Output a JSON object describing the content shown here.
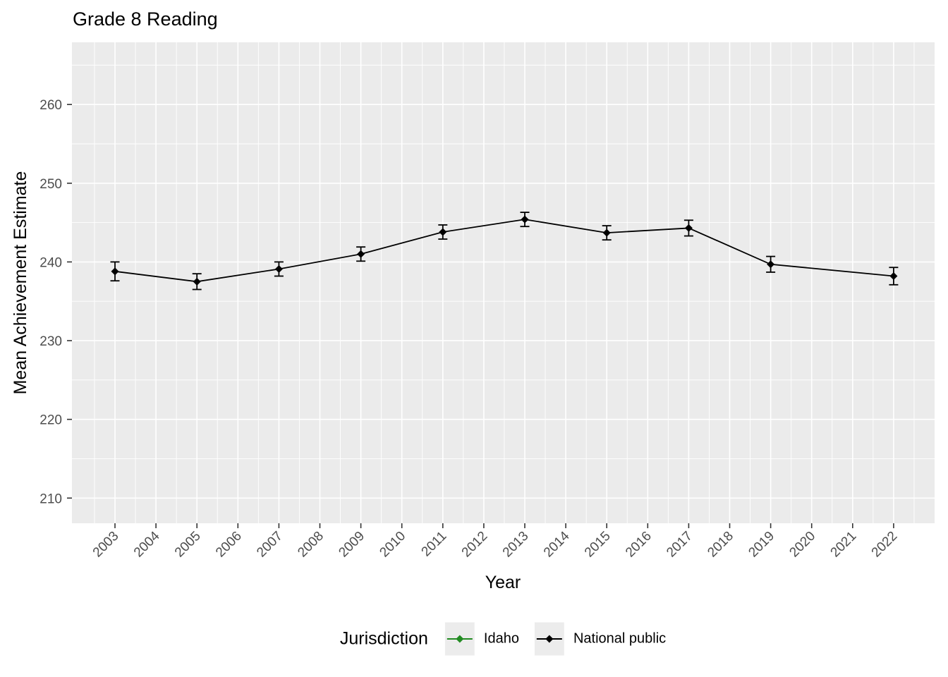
{
  "title": "Grade 8 Reading",
  "axes": {
    "x_label": "Year",
    "y_label": "Mean Achievement Estimate"
  },
  "legend": {
    "title": "Jurisdiction",
    "entries": [
      {
        "label": "Idaho",
        "color": "#228B22"
      },
      {
        "label": "National public",
        "color": "#000000"
      }
    ]
  },
  "chart_data": {
    "type": "line",
    "title": "Grade 8 Reading",
    "xlabel": "Year",
    "ylabel": "Mean Achievement Estimate",
    "x_ticks": [
      2003,
      2004,
      2005,
      2006,
      2007,
      2008,
      2009,
      2010,
      2011,
      2012,
      2013,
      2014,
      2015,
      2016,
      2017,
      2018,
      2019,
      2020,
      2021,
      2022
    ],
    "y_ticks": [
      210,
      220,
      230,
      240,
      250,
      260
    ],
    "y_minor_ticks": [
      215,
      225,
      235,
      245,
      255,
      265
    ],
    "xlim": [
      2001.95,
      2023.0
    ],
    "ylim": [
      206.8,
      267.9
    ],
    "grid": true,
    "legend_title": "Jurisdiction",
    "legend_position": "bottom",
    "marker": "diamond",
    "error_bars": true,
    "series": [
      {
        "name": "Idaho",
        "color": "#228B22",
        "x": [],
        "y": [],
        "y_err": []
      },
      {
        "name": "National public",
        "color": "#000000",
        "x": [
          2003,
          2005,
          2007,
          2009,
          2011,
          2013,
          2015,
          2017,
          2019,
          2022
        ],
        "y": [
          238.8,
          237.5,
          239.1,
          241.0,
          243.8,
          245.4,
          243.7,
          244.3,
          239.7,
          238.2
        ],
        "y_err": [
          1.2,
          1.0,
          0.9,
          0.9,
          0.9,
          0.9,
          0.9,
          1.0,
          1.0,
          1.1
        ]
      }
    ]
  },
  "style": {
    "panel_background": "#EBEBEB",
    "gridline_color": "#FFFFFF",
    "tick_color": "#333333",
    "tick_label_color": "#4D4D4D",
    "text_color": "#000000",
    "legend_key_background": "#ECECEC"
  }
}
